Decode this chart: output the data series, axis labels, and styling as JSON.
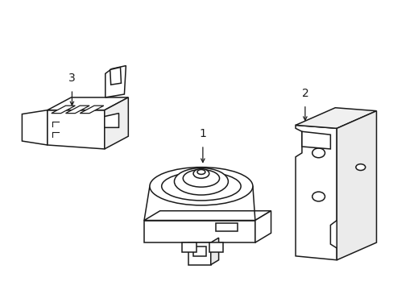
{
  "background_color": "#ffffff",
  "line_color": "#1a1a1a",
  "line_width": 1.1,
  "figsize": [
    4.89,
    3.6
  ],
  "dpi": 100
}
